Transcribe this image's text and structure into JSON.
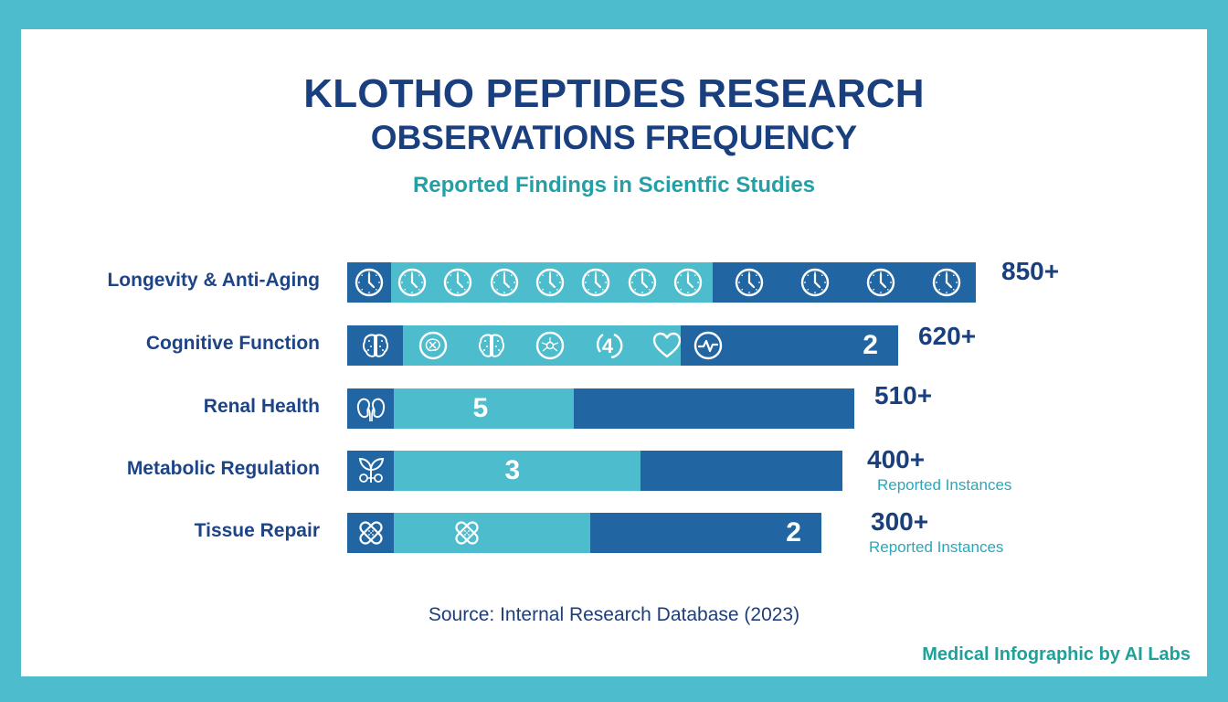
{
  "colors": {
    "frame": "#4dbccc",
    "title": "#1a3f7f",
    "subtitle": "#22a0a6",
    "bar_dark": "#2166a3",
    "bar_light": "#4dbccc",
    "credit": "#1fa19a"
  },
  "header": {
    "title_line1": "KLOTHO PEPTIDES RESEARCH",
    "title_line2": "OBSERVATIONS FREQUENCY",
    "subtitle": "Reported Findings in Scientfic Studies"
  },
  "chart_data": {
    "type": "bar",
    "orientation": "horizontal",
    "title": "KLOTHO PEPTIDES RESEARCH OBSERVATIONS FREQUENCY",
    "subtitle": "Reported Findings in Scientfic Studies",
    "xlabel": "",
    "ylabel": "",
    "grid": false,
    "categories": [
      "Longevity & Anti-Aging",
      "Cognitive Function",
      "Renal Health",
      "Metabolic Regulation",
      "Tissue Repair"
    ],
    "values": [
      850,
      620,
      510,
      400,
      300
    ],
    "value_labels": [
      "850+",
      "620+",
      "510+",
      "400+",
      "300+"
    ],
    "value_sublabels": [
      "",
      "",
      "",
      "Reported Instances",
      "Reported Instances"
    ],
    "bars": [
      {
        "category": "Longevity & Anti-Aging",
        "lead_icon": "clock-icon",
        "segment_split": 0.55,
        "segment_icons_light": [
          "clock-icon",
          "clock-icon",
          "clock-icon",
          "clock-icon",
          "clock-icon",
          "clock-icon",
          "clock-icon"
        ],
        "segment_icons_dark": [
          "clock-icon",
          "clock-icon",
          "clock-icon",
          "clock-icon"
        ],
        "light_number": "",
        "dark_number": ""
      },
      {
        "category": "Cognitive Function",
        "lead_icon": "brain-icon",
        "segment_split": 0.56,
        "segment_icons_light": [
          "neural-circle-icon",
          "brain-icon",
          "neuron-circle-icon",
          "number-4-icon",
          "heart-icon"
        ],
        "segment_icons_dark": [
          "pulse-circle-icon"
        ],
        "light_number": "",
        "dark_number": "2"
      },
      {
        "category": "Renal Health",
        "lead_icon": "kidneys-icon",
        "segment_split": 0.39,
        "segment_icons_light": [],
        "segment_icons_dark": [],
        "light_number": "5",
        "dark_number": ""
      },
      {
        "category": "Metabolic Regulation",
        "lead_icon": "plant-sprout-icon",
        "segment_split": 0.55,
        "segment_icons_light": [],
        "segment_icons_dark": [],
        "light_number": "3",
        "dark_number": ""
      },
      {
        "category": "Tissue Repair",
        "lead_icon": "bandage-icon",
        "segment_split": 0.46,
        "segment_icons_light": [
          "bandage-icon"
        ],
        "segment_icons_dark": [],
        "light_number": "",
        "dark_number": "2"
      }
    ]
  },
  "footer": {
    "source": "Source: Internal Research Database (2023)",
    "credit": "Medical Infographic by AI Labs"
  }
}
